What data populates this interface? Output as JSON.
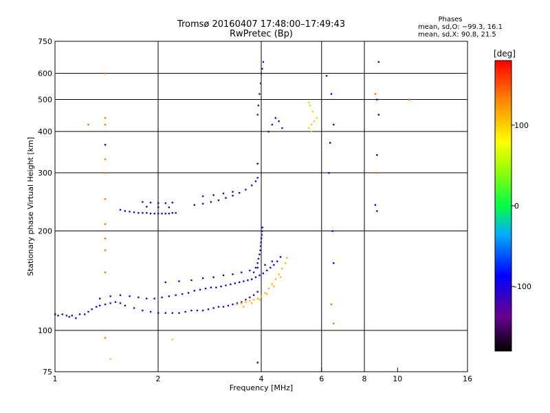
{
  "chart_data": {
    "type": "scatter",
    "title": "Tromsø 20160407 17:48:00–17:49:43",
    "subtitle": "RwPretec (Bp)",
    "xlabel": "Frequency [MHz]",
    "ylabel": "Stationary phase Virtual Height [km]",
    "x_scale": "log",
    "y_scale": "log",
    "xlim": [
      1,
      16
    ],
    "ylim": [
      75,
      750
    ],
    "x_ticks": [
      1,
      2,
      4,
      6,
      8,
      10,
      16
    ],
    "x_tick_labels": [
      "1",
      "2",
      "4",
      "6",
      "8",
      "10",
      "16"
    ],
    "x_grid": [
      2,
      4,
      6,
      8
    ],
    "y_ticks": [
      75,
      100,
      200,
      300,
      400,
      500,
      600,
      750
    ],
    "y_tick_labels": [
      "75",
      "100",
      "200",
      "300",
      "400",
      "500",
      "600",
      "750"
    ],
    "grid": true,
    "phase_info": {
      "heading": "Phases",
      "line_o": "mean, sd,O: −99.3, 16.1",
      "line_x": "mean, sd,X:  90.8, 21.5"
    },
    "colorbar": {
      "label": "[deg]",
      "range": [
        -180,
        180
      ],
      "ticks": [
        100,
        0,
        -100
      ],
      "tick_labels": [
        "100",
        "0",
        "-100"
      ]
    },
    "series": [
      {
        "color_value": -110,
        "points": [
          [
            1.0,
            112
          ],
          [
            1.02,
            111
          ],
          [
            1.05,
            112
          ],
          [
            1.08,
            111
          ],
          [
            1.1,
            110
          ],
          [
            1.12,
            111
          ],
          [
            1.15,
            109
          ],
          [
            1.18,
            112
          ],
          [
            1.22,
            112
          ],
          [
            1.25,
            114
          ],
          [
            1.28,
            116
          ],
          [
            1.32,
            118
          ],
          [
            1.35,
            119
          ],
          [
            1.4,
            120
          ],
          [
            1.45,
            121
          ],
          [
            1.5,
            122
          ],
          [
            1.55,
            121
          ],
          [
            1.6,
            119
          ],
          [
            1.7,
            117
          ],
          [
            1.8,
            115
          ],
          [
            1.9,
            114
          ],
          [
            2.0,
            113
          ],
          [
            2.1,
            113
          ],
          [
            2.2,
            113
          ],
          [
            2.3,
            113
          ],
          [
            2.4,
            114
          ],
          [
            2.5,
            115
          ],
          [
            2.6,
            115
          ],
          [
            2.7,
            115
          ],
          [
            2.8,
            116
          ],
          [
            2.9,
            117
          ],
          [
            3.0,
            118
          ],
          [
            3.1,
            118
          ],
          [
            3.2,
            119
          ],
          [
            3.3,
            120
          ],
          [
            3.4,
            121
          ],
          [
            3.5,
            122
          ],
          [
            3.6,
            124
          ],
          [
            3.7,
            126
          ],
          [
            3.8,
            128
          ],
          [
            3.9,
            131
          ]
        ]
      },
      {
        "color_value": -100,
        "points": [
          [
            1.35,
            125
          ],
          [
            1.45,
            127
          ],
          [
            1.55,
            128
          ],
          [
            1.65,
            127
          ],
          [
            1.75,
            126
          ],
          [
            1.85,
            125
          ],
          [
            1.95,
            125
          ],
          [
            2.05,
            126
          ],
          [
            2.15,
            127
          ],
          [
            2.25,
            128
          ],
          [
            2.35,
            129
          ],
          [
            2.45,
            130
          ],
          [
            2.55,
            132
          ],
          [
            2.65,
            133
          ],
          [
            2.75,
            134
          ],
          [
            2.85,
            135
          ],
          [
            2.95,
            135
          ],
          [
            3.05,
            136
          ],
          [
            3.15,
            137
          ],
          [
            3.25,
            138
          ],
          [
            3.35,
            139
          ],
          [
            3.45,
            140
          ],
          [
            3.55,
            141
          ],
          [
            3.65,
            142
          ],
          [
            3.75,
            143
          ],
          [
            3.85,
            145
          ],
          [
            3.95,
            147
          ],
          [
            4.05,
            149
          ],
          [
            4.15,
            152
          ],
          [
            4.25,
            155
          ],
          [
            4.35,
            158
          ],
          [
            4.45,
            162
          ],
          [
            4.55,
            167
          ],
          [
            2.1,
            140
          ],
          [
            2.3,
            141
          ],
          [
            2.5,
            142
          ],
          [
            2.7,
            144
          ],
          [
            2.9,
            145
          ],
          [
            3.1,
            147
          ],
          [
            3.3,
            148
          ],
          [
            3.5,
            150
          ],
          [
            3.7,
            152
          ],
          [
            3.9,
            155
          ],
          [
            4.1,
            158
          ],
          [
            4.3,
            162
          ]
        ]
      },
      {
        "color_value": -115,
        "points": [
          [
            3.8,
            150
          ],
          [
            3.85,
            155
          ],
          [
            3.9,
            160
          ],
          [
            3.92,
            165
          ],
          [
            3.95,
            170
          ],
          [
            3.97,
            175
          ],
          [
            3.98,
            180
          ],
          [
            3.99,
            185
          ],
          [
            4.0,
            190
          ],
          [
            4.01,
            195
          ],
          [
            4.02,
            200
          ],
          [
            4.03,
            205
          ]
        ]
      },
      {
        "color_value": -108,
        "points": [
          [
            1.55,
            232
          ],
          [
            1.6,
            230
          ],
          [
            1.65,
            229
          ],
          [
            1.7,
            228
          ],
          [
            1.75,
            227
          ],
          [
            1.8,
            227
          ],
          [
            1.85,
            227
          ],
          [
            1.9,
            226
          ],
          [
            1.95,
            226
          ],
          [
            2.0,
            226
          ],
          [
            2.05,
            226
          ],
          [
            2.1,
            226
          ],
          [
            2.15,
            226
          ],
          [
            2.2,
            227
          ],
          [
            2.25,
            227
          ],
          [
            1.8,
            245
          ],
          [
            1.9,
            244
          ],
          [
            2.0,
            243
          ],
          [
            2.1,
            243
          ],
          [
            2.2,
            244
          ],
          [
            1.85,
            237
          ],
          [
            2.0,
            236
          ],
          [
            2.15,
            236
          ]
        ]
      },
      {
        "color_value": -105,
        "points": [
          [
            2.55,
            240
          ],
          [
            2.7,
            242
          ],
          [
            2.85,
            245
          ],
          [
            3.0,
            248
          ],
          [
            3.15,
            252
          ],
          [
            3.3,
            256
          ],
          [
            3.45,
            261
          ],
          [
            3.6,
            267
          ],
          [
            3.75,
            275
          ],
          [
            3.85,
            283
          ],
          [
            3.9,
            290
          ],
          [
            2.7,
            255
          ],
          [
            2.9,
            257
          ],
          [
            3.1,
            260
          ],
          [
            3.3,
            263
          ]
        ]
      },
      {
        "color_value": -120,
        "points": [
          [
            3.9,
            450
          ],
          [
            3.92,
            480
          ],
          [
            3.95,
            520
          ],
          [
            3.98,
            560
          ],
          [
            4.0,
            600
          ],
          [
            4.02,
            620
          ],
          [
            4.05,
            650
          ],
          [
            4.3,
            420
          ],
          [
            4.4,
            440
          ],
          [
            4.5,
            430
          ],
          [
            4.6,
            410
          ],
          [
            4.2,
            400
          ]
        ]
      },
      {
        "color_value": 110,
        "points": [
          [
            3.4,
            120
          ],
          [
            3.5,
            121
          ],
          [
            3.6,
            122
          ],
          [
            3.7,
            123
          ],
          [
            3.8,
            124
          ],
          [
            3.9,
            125
          ],
          [
            4.0,
            127
          ],
          [
            4.1,
            130
          ],
          [
            4.2,
            134
          ],
          [
            4.3,
            138
          ],
          [
            4.4,
            143
          ],
          [
            4.5,
            148
          ],
          [
            4.6,
            154
          ],
          [
            4.7,
            160
          ],
          [
            4.75,
            166
          ],
          [
            3.55,
            118
          ],
          [
            3.75,
            121
          ],
          [
            3.95,
            124
          ],
          [
            4.15,
            129
          ],
          [
            4.35,
            136
          ],
          [
            4.55,
            145
          ]
        ]
      },
      {
        "color_value": 100,
        "points": [
          [
            5.5,
            410
          ],
          [
            5.6,
            420
          ],
          [
            5.7,
            430
          ],
          [
            5.8,
            440
          ],
          [
            5.65,
            460
          ],
          [
            5.55,
            480
          ]
        ]
      },
      {
        "color_value": -90,
        "points": [
          [
            6.2,
            590
          ],
          [
            6.4,
            520
          ],
          [
            6.5,
            420
          ],
          [
            6.3,
            300
          ],
          [
            6.45,
            200
          ],
          [
            6.5,
            160
          ],
          [
            8.8,
            650
          ],
          [
            8.7,
            500
          ],
          [
            8.8,
            450
          ],
          [
            8.6,
            240
          ],
          [
            8.7,
            230
          ]
        ]
      },
      {
        "color_value": 140,
        "points": [
          [
            1.4,
            600
          ],
          [
            1.4,
            440
          ],
          [
            1.4,
            420
          ],
          [
            1.4,
            330
          ],
          [
            1.4,
            300
          ],
          [
            1.4,
            250
          ],
          [
            1.4,
            210
          ],
          [
            1.4,
            190
          ],
          [
            1.4,
            175
          ],
          [
            1.4,
            150
          ],
          [
            1.4,
            95
          ],
          [
            1.25,
            420
          ],
          [
            6.4,
            120
          ],
          [
            6.5,
            105
          ],
          [
            8.7,
            300
          ],
          [
            8.6,
            520
          ],
          [
            10.8,
            500
          ]
        ]
      },
      {
        "color_value": -160,
        "points": [
          [
            1.4,
            365
          ],
          [
            3.9,
            320
          ],
          [
            3.9,
            80
          ],
          [
            6.35,
            370
          ],
          [
            8.7,
            340
          ]
        ]
      },
      {
        "color_value": 40,
        "points": [
          [
            1.45,
            82
          ],
          [
            2.2,
            94
          ],
          [
            5.5,
            490
          ],
          [
            5.6,
            400
          ]
        ]
      }
    ]
  }
}
